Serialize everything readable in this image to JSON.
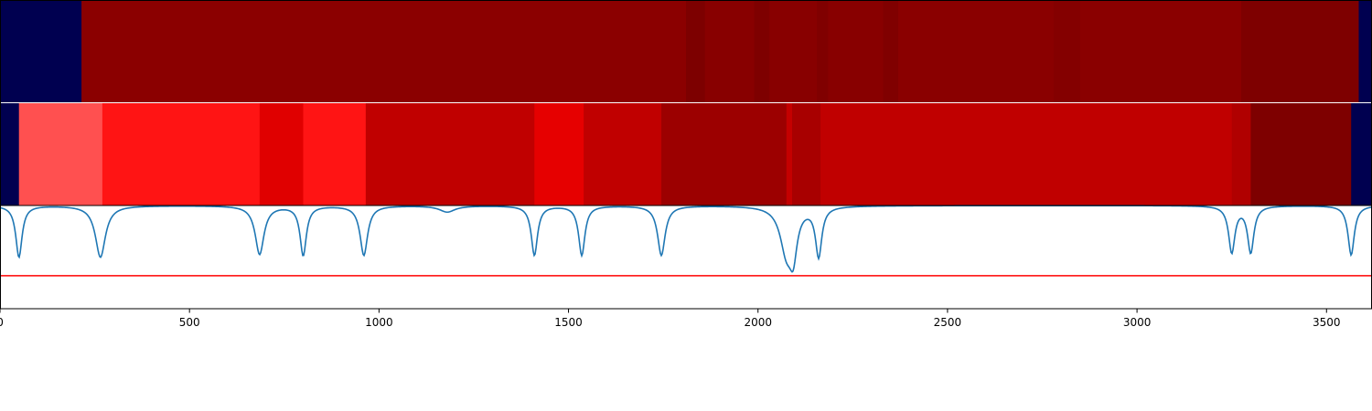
{
  "colors": {
    "background_band": "#000050",
    "trace_line": "#1f77b4",
    "threshold_line": "#ff0000",
    "axis": "#000000"
  },
  "chart_data": {
    "type": "heatmap",
    "x_range": [
      0,
      3620
    ],
    "x_ticks": [
      0,
      500,
      1000,
      1500,
      2000,
      2500,
      3000,
      3500
    ],
    "x_tick_labels": [
      "0",
      "500",
      "1000",
      "1500",
      "2000",
      "2500",
      "3000",
      "3500"
    ],
    "tracks": [
      {
        "segments": [
          {
            "start": 0,
            "end": 215,
            "color": "#000050"
          },
          {
            "start": 215,
            "end": 1810,
            "color": "#8b0000"
          },
          {
            "start": 1810,
            "end": 1860,
            "color": "#7d0000"
          },
          {
            "start": 1860,
            "end": 1990,
            "color": "#880000"
          },
          {
            "start": 1990,
            "end": 2030,
            "color": "#7e0000"
          },
          {
            "start": 2030,
            "end": 2155,
            "color": "#880000"
          },
          {
            "start": 2155,
            "end": 2185,
            "color": "#800000"
          },
          {
            "start": 2185,
            "end": 2330,
            "color": "#880000"
          },
          {
            "start": 2330,
            "end": 2370,
            "color": "#800000"
          },
          {
            "start": 2370,
            "end": 2780,
            "color": "#8a0000"
          },
          {
            "start": 2780,
            "end": 2850,
            "color": "#840000"
          },
          {
            "start": 2850,
            "end": 3275,
            "color": "#8a0000"
          },
          {
            "start": 3275,
            "end": 3585,
            "color": "#7e0000"
          },
          {
            "start": 3585,
            "end": 3620,
            "color": "#000050"
          }
        ]
      },
      {
        "segments": [
          {
            "start": 0,
            "end": 50,
            "color": "#000050"
          },
          {
            "start": 50,
            "end": 270,
            "color": "#ff5050"
          },
          {
            "start": 270,
            "end": 685,
            "color": "#ff1414"
          },
          {
            "start": 685,
            "end": 800,
            "color": "#e00000"
          },
          {
            "start": 800,
            "end": 965,
            "color": "#ff1414"
          },
          {
            "start": 965,
            "end": 1410,
            "color": "#c00000"
          },
          {
            "start": 1410,
            "end": 1540,
            "color": "#e60000"
          },
          {
            "start": 1540,
            "end": 1745,
            "color": "#c00000"
          },
          {
            "start": 1745,
            "end": 2075,
            "color": "#9c0000"
          },
          {
            "start": 2075,
            "end": 2090,
            "color": "#c40000"
          },
          {
            "start": 2090,
            "end": 2165,
            "color": "#a80000"
          },
          {
            "start": 2165,
            "end": 3250,
            "color": "#c00000"
          },
          {
            "start": 3250,
            "end": 3300,
            "color": "#b00000"
          },
          {
            "start": 3300,
            "end": 3565,
            "color": "#7e0000"
          },
          {
            "start": 3565,
            "end": 3620,
            "color": "#000050"
          }
        ]
      }
    ],
    "trace": {
      "name": "",
      "y_range": [
        0,
        1
      ],
      "baseline": 1.0,
      "threshold": 0.32,
      "dips": [
        {
          "center": 50,
          "depth": 0.5,
          "width": 10
        },
        {
          "center": 265,
          "depth": 0.5,
          "width": 16
        },
        {
          "center": 685,
          "depth": 0.47,
          "width": 14
        },
        {
          "center": 800,
          "depth": 0.48,
          "width": 10
        },
        {
          "center": 960,
          "depth": 0.48,
          "width": 12
        },
        {
          "center": 1180,
          "depth": 0.06,
          "width": 25
        },
        {
          "center": 1410,
          "depth": 0.48,
          "width": 10
        },
        {
          "center": 1535,
          "depth": 0.48,
          "width": 10
        },
        {
          "center": 1745,
          "depth": 0.48,
          "width": 12
        },
        {
          "center": 2075,
          "depth": 0.43,
          "width": 20
        },
        {
          "center": 2093,
          "depth": 0.38,
          "width": 12
        },
        {
          "center": 2160,
          "depth": 0.48,
          "width": 10
        },
        {
          "center": 3250,
          "depth": 0.45,
          "width": 10
        },
        {
          "center": 3300,
          "depth": 0.45,
          "width": 10
        },
        {
          "center": 3565,
          "depth": 0.48,
          "width": 10
        }
      ]
    },
    "xlabel": "",
    "ylabel": "",
    "title": "",
    "grid": false
  }
}
